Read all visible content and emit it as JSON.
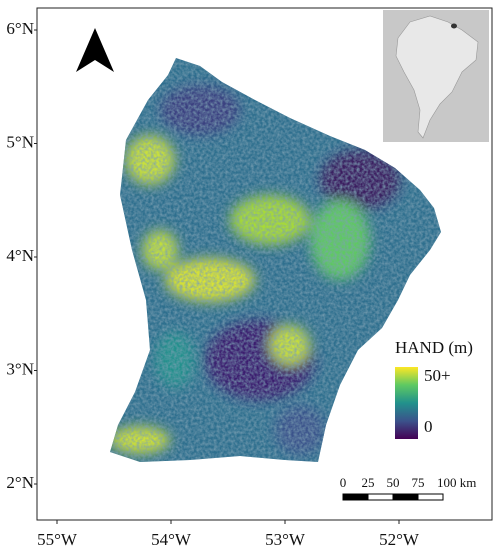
{
  "map": {
    "lat_labels": [
      "6°N",
      "5°N",
      "4°N",
      "3°N",
      "2°N"
    ],
    "lon_labels": [
      "55°W",
      "54°W",
      "53°W",
      "52°W"
    ],
    "legend": {
      "title": "HAND (m)",
      "max_label": "50+",
      "min_label": "0"
    },
    "scale_bar": {
      "labels": [
        "0",
        "25",
        "50",
        "75",
        "100 km"
      ]
    }
  }
}
